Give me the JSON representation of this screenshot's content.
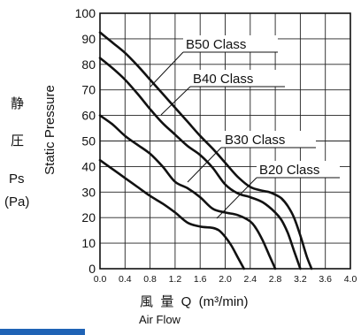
{
  "chart_data": {
    "type": "line",
    "xlim": [
      0,
      4.0
    ],
    "ylim": [
      0,
      100
    ],
    "x_ticks": [
      "0.0",
      "0.4",
      "0.8",
      "1.2",
      "1.6",
      "2.0",
      "2.4",
      "2.8",
      "3.2",
      "3.6",
      "4.0"
    ],
    "y_ticks": [
      "0",
      "10",
      "20",
      "30",
      "40",
      "50",
      "60",
      "70",
      "80",
      "90",
      "100"
    ],
    "grid": true,
    "xlabel": "風  量  Q  (m³/min)",
    "xlabel_en": "Air Flow",
    "ylabel": "Static Pressure",
    "ylabel_jp_1": "静",
    "ylabel_jp_2": "圧",
    "ylabel_ps": "Ps",
    "ylabel_unit": "(Pa)",
    "series": [
      {
        "name": "B50 Class",
        "color": "#111111",
        "x": [
          0.0,
          0.2,
          0.4,
          0.6,
          0.8,
          1.0,
          1.2,
          1.4,
          1.6,
          1.8,
          2.0,
          2.2,
          2.4,
          2.6,
          2.7,
          2.8,
          2.9,
          3.0,
          3.1,
          3.2,
          3.3,
          3.38
        ],
        "y": [
          92.5,
          88.5,
          84.5,
          79.5,
          74,
          68.5,
          63,
          57.5,
          52,
          47,
          41.5,
          36,
          32,
          30.5,
          30,
          29,
          27.5,
          24.5,
          20,
          13,
          5,
          0
        ]
      },
      {
        "name": "B40 Class",
        "color": "#111111",
        "x": [
          0.0,
          0.2,
          0.4,
          0.6,
          0.8,
          1.0,
          1.2,
          1.4,
          1.6,
          1.8,
          2.0,
          2.2,
          2.4,
          2.6,
          2.8,
          2.9,
          3.0,
          3.1,
          3.2
        ],
        "y": [
          82.5,
          78.5,
          74,
          68.5,
          62.5,
          57,
          52.5,
          48,
          44.5,
          39.5,
          33,
          29.5,
          28,
          26,
          22,
          19,
          14,
          7,
          0
        ]
      },
      {
        "name": "B30 Class",
        "color": "#111111",
        "x": [
          0.0,
          0.2,
          0.4,
          0.6,
          0.8,
          1.0,
          1.2,
          1.4,
          1.6,
          1.8,
          2.0,
          2.2,
          2.4,
          2.5,
          2.6,
          2.7,
          2.8
        ],
        "y": [
          60,
          56.5,
          52,
          48.5,
          45,
          40,
          34,
          31.5,
          28,
          23.5,
          22,
          21,
          18.5,
          15.5,
          11,
          5.5,
          0
        ]
      },
      {
        "name": "B20 Class",
        "color": "#111111",
        "x": [
          0.0,
          0.2,
          0.4,
          0.6,
          0.8,
          1.0,
          1.2,
          1.4,
          1.6,
          1.8,
          1.9,
          2.0,
          2.1,
          2.2,
          2.3
        ],
        "y": [
          42.5,
          39,
          35.5,
          32,
          28.5,
          25.5,
          22,
          18,
          16.5,
          16,
          15,
          12.5,
          9,
          4.5,
          0
        ]
      }
    ]
  }
}
